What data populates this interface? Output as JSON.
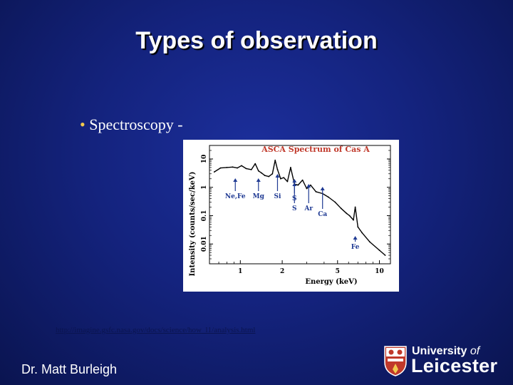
{
  "slide": {
    "title": "Types of observation",
    "bullet_mark": "•",
    "bullet_text": "Spectroscopy -",
    "source_url": "http://imagine.gsfc.nasa.gov/docs/science/how_l1/analysis.html",
    "author": "Dr. Matt Burleigh"
  },
  "logo": {
    "line1": "University",
    "line1_of": "of",
    "line2": "Leicester"
  },
  "colors": {
    "background": "#14237e",
    "title": "#ffffff",
    "bullet_dot": "#f2c94c",
    "chart_title": "#c0392b",
    "label_blue": "#1f3a93",
    "spectrum": "#000000"
  },
  "chart_data": {
    "type": "line",
    "title": "ASCA Spectrum of Cas A",
    "xlabel": "Energy (keV)",
    "ylabel": "Intensity (counts/sec/keV)",
    "xscale": "log",
    "yscale": "log",
    "xlim": [
      0.6,
      12
    ],
    "ylim": [
      0.002,
      30
    ],
    "x_ticks": [
      1,
      2,
      5,
      10
    ],
    "y_ticks": [
      0.01,
      0.1,
      1,
      10
    ],
    "x_tick_labels": [
      "1",
      "2",
      "5",
      "10"
    ],
    "y_tick_labels": [
      "0.01",
      "0.1",
      "1",
      "10"
    ],
    "series": [
      {
        "x": [
          0.65,
          0.72,
          0.8,
          0.88,
          0.95,
          1.02,
          1.1,
          1.2,
          1.28,
          1.35,
          1.42,
          1.5,
          1.6,
          1.7,
          1.78,
          1.85,
          1.95,
          2.05,
          2.18,
          2.3,
          2.45,
          2.6,
          2.8,
          3.0,
          3.2,
          3.5,
          3.9,
          4.3,
          4.8,
          5.3,
          5.8,
          6.1,
          6.5,
          6.7,
          7.0,
          7.5,
          8.5,
          10.0,
          11.0
        ],
        "y": [
          3.5,
          4.8,
          5.0,
          5.2,
          4.8,
          5.8,
          4.6,
          4.2,
          6.8,
          3.8,
          3.2,
          2.6,
          2.4,
          3.0,
          9.0,
          4.2,
          2.0,
          2.2,
          1.6,
          5.0,
          1.3,
          1.2,
          1.8,
          0.9,
          1.2,
          0.7,
          0.6,
          0.45,
          0.3,
          0.18,
          0.12,
          0.1,
          0.07,
          0.2,
          0.04,
          0.025,
          0.012,
          0.006,
          0.004
        ]
      }
    ],
    "annotations": [
      {
        "text": "Ne,Fe",
        "x": 0.92
      },
      {
        "text": "Mg",
        "x": 1.35
      },
      {
        "text": "Si",
        "x": 1.85
      },
      {
        "text": "S",
        "x": 2.45
      },
      {
        "text": "S",
        "x": 2.45
      },
      {
        "text": "Ar",
        "x": 3.1
      },
      {
        "text": "Ca",
        "x": 3.9
      },
      {
        "text": "Fe",
        "x": 6.7
      }
    ]
  }
}
